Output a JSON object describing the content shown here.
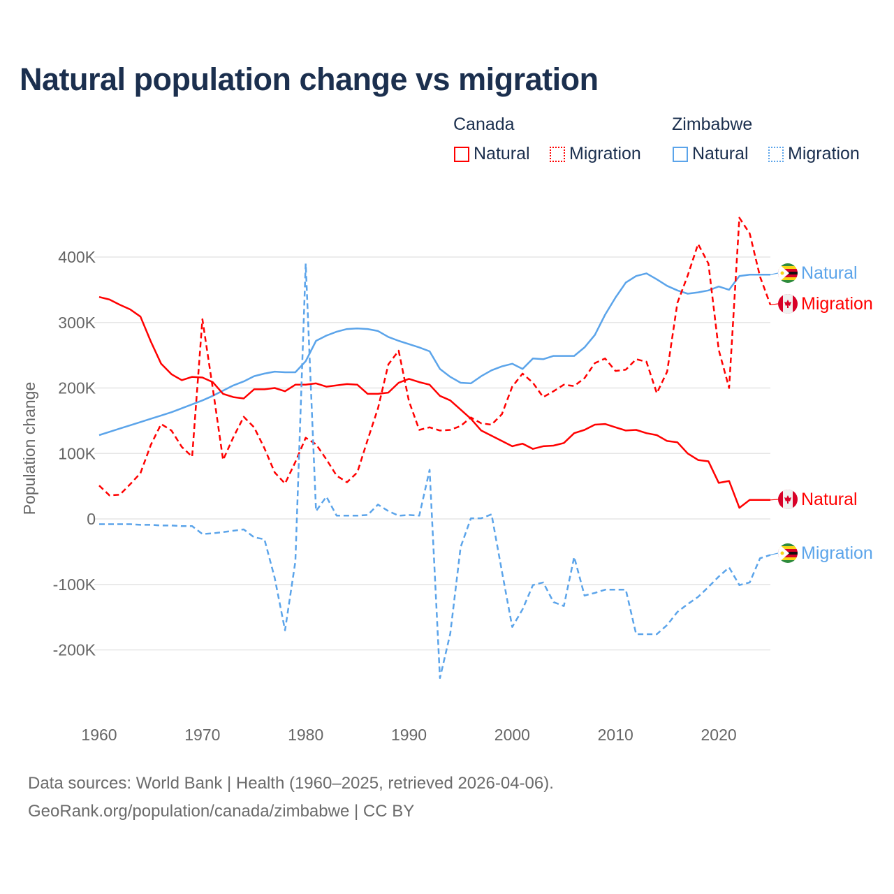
{
  "chart_data": {
    "type": "line",
    "title": "Natural population change vs migration",
    "ylabel": "Population change",
    "xlabel": "",
    "ylim": [
      -280000,
      480000
    ],
    "xlim": [
      1960,
      2025
    ],
    "grid": true,
    "legend_position": "top-right",
    "y_ticks": [
      {
        "v": 400000,
        "label": "400K"
      },
      {
        "v": 300000,
        "label": "300K"
      },
      {
        "v": 200000,
        "label": "200K"
      },
      {
        "v": 100000,
        "label": "100K"
      },
      {
        "v": 0,
        "label": "0"
      },
      {
        "v": -100000,
        "label": "-100K"
      },
      {
        "v": -200000,
        "label": "-200K"
      }
    ],
    "x_ticks": [
      {
        "v": 1960,
        "label": "1960"
      },
      {
        "v": 1970,
        "label": "1970"
      },
      {
        "v": 1980,
        "label": "1980"
      },
      {
        "v": 1990,
        "label": "1990"
      },
      {
        "v": 2000,
        "label": "2000"
      },
      {
        "v": 2010,
        "label": "2010"
      },
      {
        "v": 2020,
        "label": "2020"
      }
    ],
    "x_start": 1960,
    "series": [
      {
        "name": "Canada Natural",
        "country": "Canada",
        "kind": "Natural",
        "color": "#ff0000",
        "dashed": false,
        "end_label": "Natural",
        "flag": "canada",
        "values": [
          339,
          335,
          327,
          320,
          309,
          271,
          237,
          221,
          212,
          217,
          216,
          209,
          191,
          186,
          184,
          198,
          198,
          200,
          195,
          205,
          205,
          207,
          202,
          204,
          206,
          205,
          191,
          191,
          193,
          208,
          214,
          209,
          205,
          188,
          181,
          167,
          153,
          135,
          127,
          119,
          111,
          115,
          107,
          111,
          112,
          116,
          131,
          136,
          144,
          145,
          140,
          135,
          136,
          131,
          128,
          119,
          117,
          100,
          90,
          88,
          55,
          58,
          17,
          29,
          29,
          29
        ]
      },
      {
        "name": "Canada Migration",
        "country": "Canada",
        "kind": "Migration",
        "color": "#ff0000",
        "dashed": true,
        "end_label": "Migration",
        "flag": "canada",
        "values": [
          51,
          36,
          37,
          53,
          70,
          113,
          145,
          135,
          110,
          95,
          305,
          200,
          90,
          125,
          156,
          140,
          108,
          71,
          54,
          87,
          124,
          114,
          91,
          66,
          56,
          71,
          121,
          169,
          236,
          257,
          180,
          136,
          140,
          135,
          136,
          142,
          155,
          146,
          144,
          160,
          202,
          222,
          208,
          186,
          195,
          205,
          203,
          215,
          238,
          245,
          226,
          228,
          244,
          240,
          192,
          225,
          330,
          372,
          420,
          390,
          258,
          200,
          460,
          436,
          370,
          327
        ]
      },
      {
        "name": "Zimbabwe Natural",
        "country": "Zimbabwe",
        "kind": "Natural",
        "color": "#5ba4ea",
        "dashed": false,
        "end_label": "Natural",
        "flag": "zimbabwe",
        "values": [
          128,
          133,
          138,
          143,
          148,
          153,
          158,
          163,
          169,
          175,
          181,
          188,
          196,
          204,
          210,
          218,
          222,
          225,
          224,
          224,
          241,
          272,
          280,
          286,
          290,
          291,
          290,
          287,
          278,
          272,
          267,
          262,
          256,
          229,
          217,
          208,
          207,
          218,
          227,
          233,
          237,
          229,
          245,
          244,
          249,
          249,
          249,
          262,
          281,
          312,
          338,
          361,
          371,
          375,
          366,
          356,
          349,
          344,
          346,
          349,
          355,
          350,
          371,
          373,
          373,
          373
        ]
      },
      {
        "name": "Zimbabwe Migration",
        "country": "Zimbabwe",
        "kind": "Migration",
        "color": "#5ba4ea",
        "dashed": true,
        "end_label": "Migration",
        "flag": "zimbabwe",
        "values": [
          -8,
          -8,
          -8,
          -8,
          -9,
          -9,
          -10,
          -10,
          -11,
          -11,
          -23,
          -22,
          -20,
          -18,
          -16,
          -28,
          -31,
          -90,
          -170,
          -65,
          390,
          12,
          34,
          5,
          5,
          5,
          6,
          22,
          12,
          5,
          6,
          5,
          75,
          -243,
          -175,
          -43,
          1,
          1,
          7,
          -80,
          -165,
          -138,
          -101,
          -97,
          -127,
          -133,
          -58,
          -117,
          -113,
          -108,
          -108,
          -108,
          -176,
          -176,
          -176,
          -162,
          -142,
          -130,
          -119,
          -104,
          -88,
          -74,
          -101,
          -97,
          -60,
          -55
        ]
      }
    ],
    "value_unit": "thousands"
  },
  "legend": {
    "groups": [
      {
        "label": "Canada",
        "items": [
          {
            "label": "Natural",
            "color": "#ff0000",
            "style": "solid"
          },
          {
            "label": "Migration",
            "color": "#ff0000",
            "style": "dotted"
          }
        ]
      },
      {
        "label": "Zimbabwe",
        "items": [
          {
            "label": "Natural",
            "color": "#5ba4ea",
            "style": "solid"
          },
          {
            "label": "Migration",
            "color": "#5ba4ea",
            "style": "dotted"
          }
        ]
      }
    ]
  },
  "footer": {
    "line1": "Data sources: World Bank | Health (1960–2025, retrieved 2026-04-06).",
    "line2": "GeoRank.org/population/canada/zimbabwe | CC BY"
  }
}
